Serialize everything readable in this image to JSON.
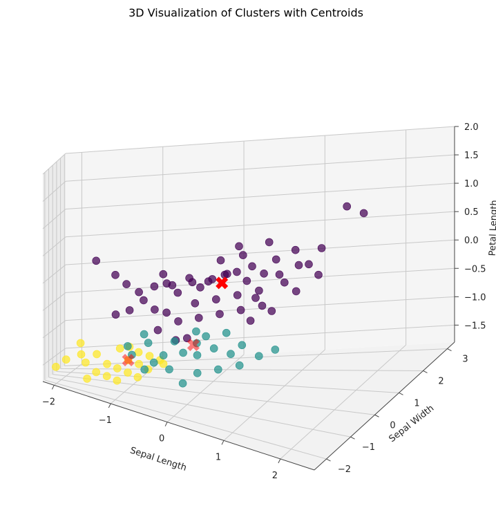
{
  "chart_data": {
    "type": "scatter3d",
    "title": "3D Visualization of Clusters with Centroids",
    "xlabel": "Sepal Length",
    "ylabel": "Sepal Width",
    "zlabel": "Petal Length",
    "xlim": [
      -2.2,
      2.6
    ],
    "ylim": [
      -2.5,
      3.3
    ],
    "zlim": [
      -1.8,
      2.0
    ],
    "xticks": [
      "−2",
      "−1",
      "0",
      "1",
      "2"
    ],
    "yticks": [
      "−2",
      "−1",
      "0",
      "1",
      "2",
      "3"
    ],
    "zticks": [
      "−1.5",
      "−1.0",
      "−0.5",
      "0.0",
      "0.5",
      "1.0",
      "1.5",
      "2.0"
    ],
    "grid": true,
    "cluster_colors": [
      "#440154",
      "#21918c",
      "#fde725"
    ],
    "centroid_color": "#ff0000",
    "series": [
      {
        "cluster": 0,
        "points": [
          [
            1.9,
            0.9,
            1.5
          ],
          [
            2.3,
            0.4,
            1.6
          ],
          [
            0.9,
            0.5,
            0.9
          ],
          [
            1.2,
            0.8,
            0.7
          ],
          [
            1.0,
            0.5,
            0.6
          ],
          [
            0.7,
            0.3,
            0.5
          ],
          [
            0.5,
            0.2,
            0.4
          ],
          [
            0.4,
            0.0,
            0.4
          ],
          [
            0.2,
            -0.1,
            0.3
          ],
          [
            0.3,
            0.3,
            0.3
          ],
          [
            0.1,
            0.1,
            0.2
          ],
          [
            -0.1,
            -0.1,
            0.2
          ],
          [
            0.0,
            0.0,
            0.1
          ],
          [
            -0.2,
            0.2,
            0.2
          ],
          [
            -0.4,
            -0.1,
            0.1
          ],
          [
            0.6,
            0.4,
            0.2
          ],
          [
            0.8,
            0.6,
            0.3
          ],
          [
            1.1,
            0.3,
            0.4
          ],
          [
            1.3,
            0.6,
            0.5
          ],
          [
            1.5,
            0.4,
            0.6
          ],
          [
            1.2,
            0.2,
            0.3
          ],
          [
            1.4,
            0.1,
            0.2
          ],
          [
            0.9,
            -0.1,
            0.2
          ],
          [
            0.6,
            -0.2,
            0.1
          ],
          [
            0.3,
            -0.3,
            0.0
          ],
          [
            0.0,
            -0.4,
            -0.1
          ],
          [
            -0.3,
            -0.2,
            0.0
          ],
          [
            -0.5,
            0.0,
            0.1
          ],
          [
            -0.7,
            0.1,
            0.0
          ],
          [
            -0.9,
            -0.1,
            -0.1
          ],
          [
            -1.1,
            0.0,
            0.0
          ],
          [
            -0.8,
            -0.3,
            -0.2
          ],
          [
            -0.6,
            -0.5,
            -0.3
          ],
          [
            -0.4,
            -0.6,
            -0.3
          ],
          [
            -0.2,
            -0.7,
            -0.4
          ],
          [
            0.1,
            -0.6,
            -0.3
          ],
          [
            0.4,
            -0.5,
            -0.2
          ],
          [
            0.7,
            -0.4,
            -0.1
          ],
          [
            1.0,
            -0.3,
            0.0
          ],
          [
            1.2,
            -0.5,
            0.0
          ],
          [
            -1.6,
            0.5,
            0.3
          ],
          [
            -1.3,
            0.3,
            0.1
          ],
          [
            -1.0,
            -0.4,
            -0.4
          ],
          [
            -0.6,
            0.3,
            0.2
          ],
          [
            0.2,
            0.5,
            0.5
          ],
          [
            0.5,
            0.6,
            0.6
          ],
          [
            0.8,
            0.1,
            0.0
          ],
          [
            1.6,
            0.7,
            0.8
          ],
          [
            1.7,
            0.2,
            0.5
          ],
          [
            -0.2,
            -0.9,
            -0.7
          ],
          [
            0.0,
            -1.0,
            -0.6
          ],
          [
            -0.5,
            -0.8,
            -0.6
          ],
          [
            -1.2,
            -0.5,
            -0.5
          ],
          [
            0.9,
            -0.6,
            -0.2
          ],
          [
            0.4,
            0.8,
            0.7
          ]
        ]
      },
      {
        "cluster": 1,
        "points": [
          [
            0.6,
            -0.9,
            -0.4
          ],
          [
            0.2,
            -1.2,
            -0.6
          ],
          [
            0.8,
            -1.4,
            -0.6
          ],
          [
            0.3,
            -1.6,
            -0.7
          ],
          [
            0.0,
            -1.3,
            -0.8
          ],
          [
            -0.3,
            -1.4,
            -0.9
          ],
          [
            -0.6,
            -1.1,
            -0.8
          ],
          [
            -0.4,
            -1.7,
            -1.0
          ],
          [
            -0.1,
            -1.9,
            -1.0
          ],
          [
            0.4,
            -2.0,
            -0.9
          ],
          [
            0.7,
            -1.8,
            -0.8
          ],
          [
            1.0,
            -1.6,
            -0.7
          ],
          [
            1.2,
            -1.2,
            -0.6
          ],
          [
            -0.8,
            -1.5,
            -1.0
          ],
          [
            -0.2,
            -1.0,
            -0.7
          ],
          [
            0.1,
            -0.8,
            -0.5
          ],
          [
            0.9,
            -1.1,
            -0.5
          ],
          [
            -0.5,
            -2.0,
            -1.1
          ],
          [
            0.2,
            -2.2,
            -1.1
          ],
          [
            1.4,
            -1.0,
            -0.5
          ],
          [
            -0.7,
            -0.9,
            -0.7
          ],
          [
            0.5,
            -1.3,
            -0.6
          ],
          [
            -0.9,
            -1.3,
            -0.9
          ],
          [
            0.3,
            -1.0,
            -0.5
          ]
        ]
      },
      {
        "cluster": 2,
        "points": [
          [
            -1.3,
            0.9,
            -1.3
          ],
          [
            -1.6,
            0.6,
            -1.4
          ],
          [
            -1.8,
            0.3,
            -1.4
          ],
          [
            -1.0,
            0.6,
            -1.3
          ],
          [
            -1.1,
            0.2,
            -1.4
          ],
          [
            -1.4,
            0.1,
            -1.5
          ],
          [
            -1.7,
            -0.1,
            -1.5
          ],
          [
            -0.9,
            -0.1,
            -1.4
          ],
          [
            -1.2,
            -0.3,
            -1.5
          ],
          [
            -1.5,
            -0.5,
            -1.6
          ],
          [
            -0.8,
            0.3,
            -1.3
          ],
          [
            -0.6,
            0.0,
            -1.3
          ],
          [
            -1.0,
            -0.6,
            -1.5
          ],
          [
            -1.3,
            -0.8,
            -1.6
          ],
          [
            -0.7,
            -0.5,
            -1.4
          ],
          [
            -2.0,
            0.0,
            -1.5
          ],
          [
            -1.9,
            1.5,
            -1.3
          ],
          [
            -0.5,
            -0.3,
            -1.3
          ],
          [
            -1.2,
            1.2,
            -1.3
          ],
          [
            -1.6,
            -0.9,
            -1.7
          ],
          [
            -1.1,
            -1.1,
            -1.6
          ],
          [
            -0.8,
            -0.9,
            -1.5
          ],
          [
            -2.1,
            -0.8,
            -1.6
          ]
        ]
      }
    ],
    "centroids": [
      {
        "cluster": 0,
        "point": [
          0.3,
          0.1,
          0.2
        ]
      },
      {
        "cluster": 1,
        "point": [
          0.1,
          -1.0,
          -0.7
        ]
      },
      {
        "cluster": 2,
        "point": [
          -1.1,
          0.2,
          -1.4
        ]
      }
    ]
  }
}
